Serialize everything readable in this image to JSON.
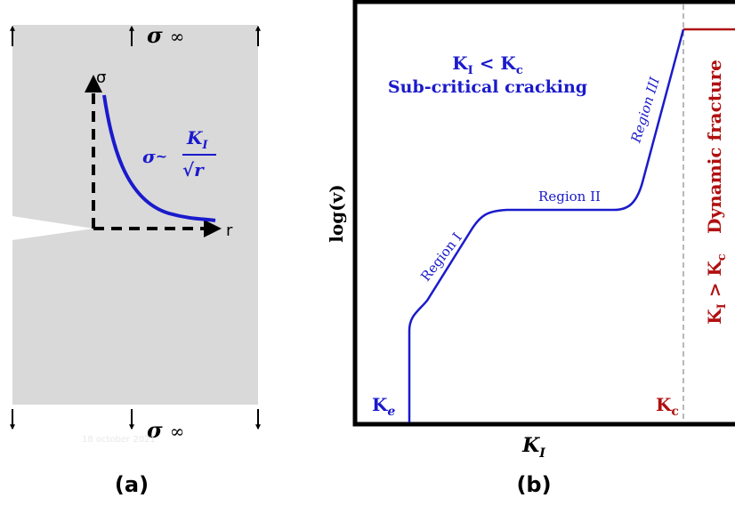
{
  "panel_a": {
    "sigma_inf_top": {
      "symbol": "σ",
      "sub": "∞"
    },
    "axis_y": "σ",
    "axis_x": "r",
    "formula": {
      "lhs": "σ",
      "tilde": "~",
      "num": "K",
      "num_sub": "I",
      "den": "√r"
    },
    "sigma_inf_bottom": {
      "symbol": "σ",
      "sub": "∞"
    },
    "watermark": "18 october 2021",
    "caption": "(a)"
  },
  "panel_b": {
    "condition": {
      "k": "K",
      "k_sub": "I",
      "op": " < ",
      "kc": "K",
      "kc_sub": "c"
    },
    "subtitle": "Sub-critical cracking",
    "regions": [
      "Region I",
      "Region II",
      "Region III"
    ],
    "y_label": "log(v)",
    "dynamic": "Dynamic fracture",
    "dyn_condition": {
      "k": "K",
      "k_sub": "I",
      "op": " > ",
      "kc": "K",
      "kc_sub": "c"
    },
    "ke": {
      "k": "K",
      "sub": "e"
    },
    "kc": {
      "k": "K",
      "sub": "c"
    },
    "x_label": {
      "k": "K",
      "sub": "I"
    },
    "caption": "(b)"
  }
}
